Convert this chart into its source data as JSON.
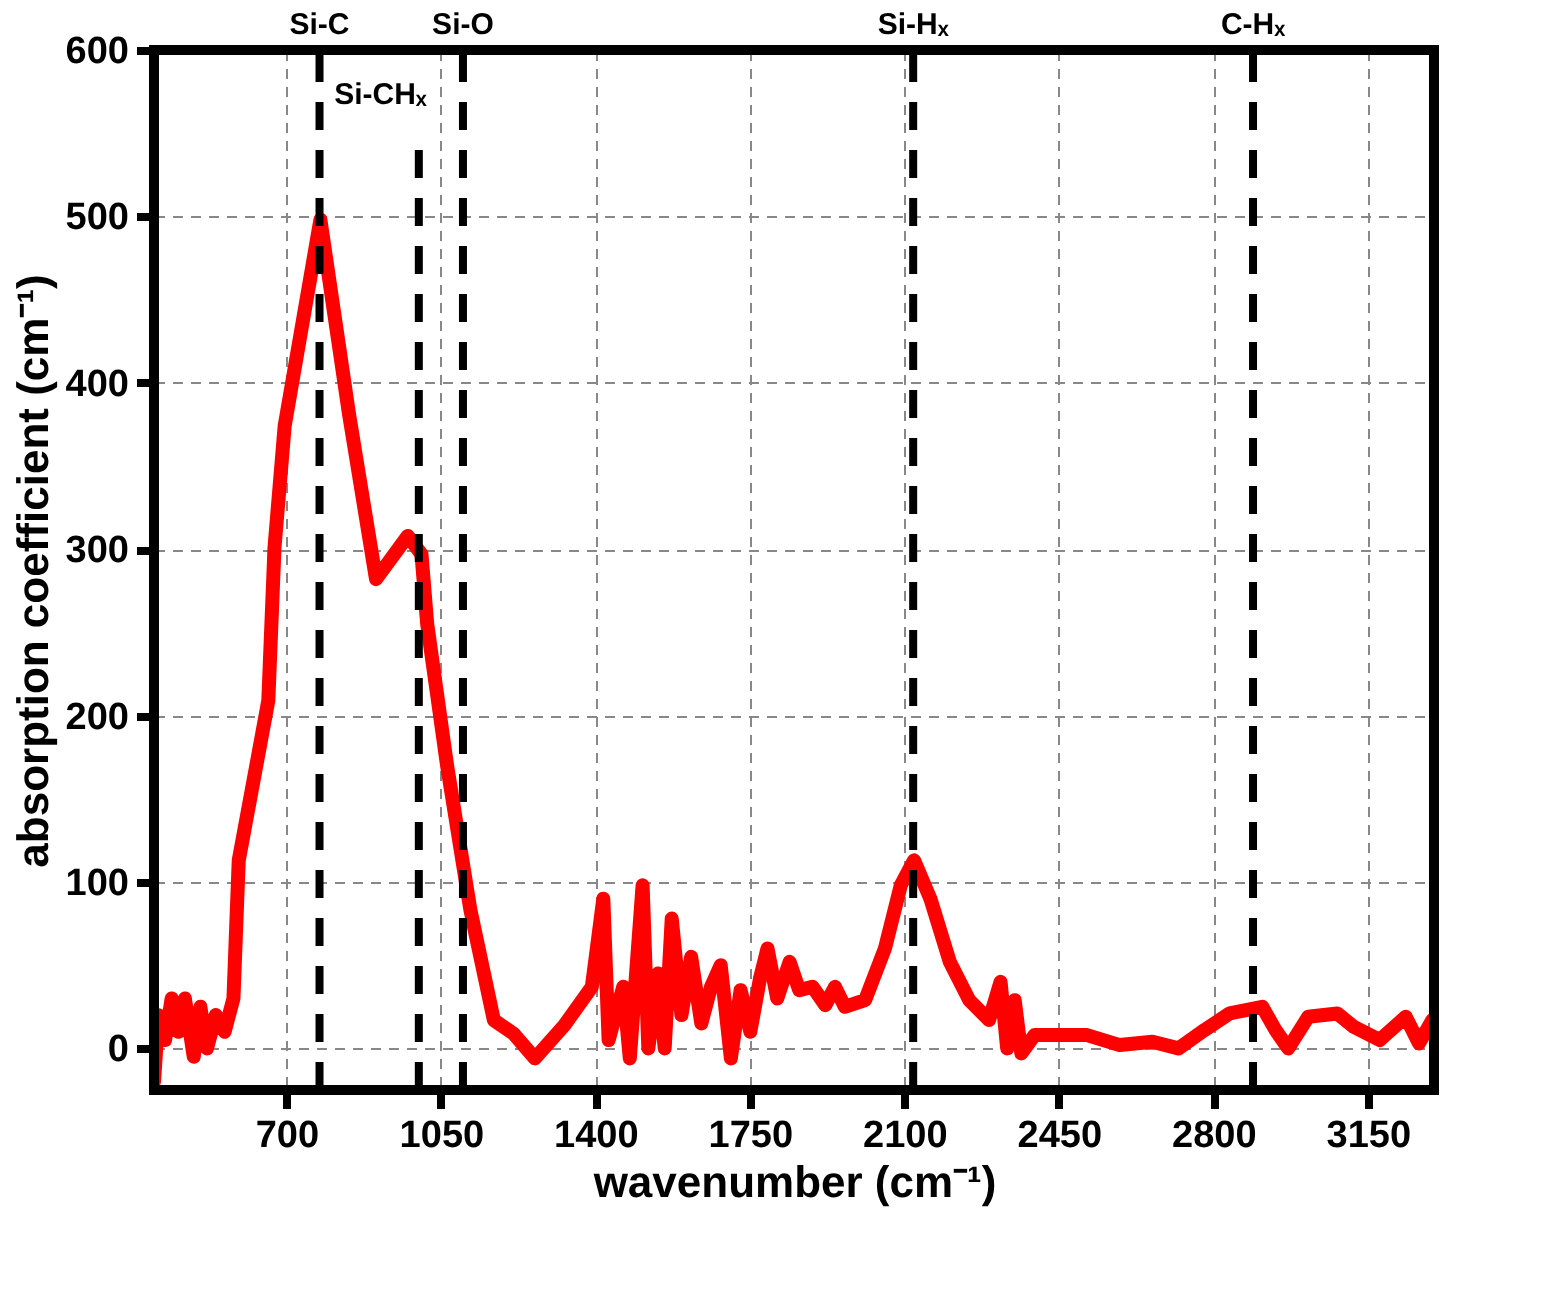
{
  "chart_data": {
    "type": "line",
    "xlabel": "wavenumber (cm⁻¹)",
    "ylabel": "absorption coefficient (cm⁻¹)",
    "xlim": [
      400,
      3300
    ],
    "xticks": [
      700,
      1050,
      1400,
      1750,
      2100,
      2450,
      2800,
      3150
    ],
    "ylim": [
      -25,
      600
    ],
    "yticks": [
      0,
      100,
      200,
      300,
      400,
      500,
      600
    ],
    "grid": true,
    "line_style": "solid",
    "series": [
      {
        "color": "#ff0000",
        "x": [
          400,
          410,
          425,
          440,
          455,
          470,
          490,
          505,
          520,
          540,
          560,
          580,
          592,
          659,
          673,
          696,
          777,
          842,
          903,
          975,
          1006,
          1019,
          1064,
          1117,
          1170,
          1214,
          1263,
          1330,
          1392,
          1418,
          1430,
          1463,
          1478,
          1507,
          1520,
          1542,
          1557,
          1573,
          1595,
          1617,
          1640,
          1662,
          1684,
          1707,
          1729,
          1751,
          1773,
          1790,
          1812,
          1840,
          1862,
          1892,
          1921,
          1943,
          1965,
          2011,
          2056,
          2092,
          2122,
          2159,
          2203,
          2247,
          2292,
          2318,
          2333,
          2350,
          2365,
          2395,
          2514,
          2588,
          2662,
          2721,
          2780,
          2837,
          2911,
          2941,
          2970,
          3015,
          3081,
          3118,
          3177,
          3236,
          3266,
          3296
        ],
        "values": [
          -20,
          20,
          5,
          30,
          10,
          30,
          -5,
          25,
          0,
          20,
          10,
          30,
          113,
          209,
          301,
          374,
          498,
          381,
          282,
          308,
          297,
          255,
          170,
          83,
          17,
          9,
          -6,
          14,
          37,
          90,
          5,
          37,
          -6,
          98,
          0,
          45,
          0,
          78,
          20,
          55,
          15,
          37,
          50,
          -6,
          35,
          10,
          42,
          60,
          30,
          52,
          35,
          37,
          26,
          37,
          25,
          29,
          60,
          98,
          113,
          90,
          52,
          29,
          17,
          40,
          0,
          29,
          -3,
          8,
          8,
          2,
          4,
          0,
          11,
          21,
          25,
          11,
          0,
          19,
          21,
          13,
          5,
          19,
          3,
          17
        ]
      }
    ],
    "ref_lines": [
      {
        "axis": "x",
        "value": 775,
        "label": "Si-C",
        "color": "#000000",
        "line_style": "dashed"
      },
      {
        "axis": "x",
        "value": 1000,
        "label": "Si-CHₓ",
        "color": "#000000",
        "line_style": "dashed"
      },
      {
        "axis": "x",
        "value": 1100,
        "label": "Si-O",
        "color": "#000000",
        "line_style": "dashed"
      },
      {
        "axis": "x",
        "value": 2120,
        "label": "Si-Hₓ",
        "color": "#000000",
        "line_style": "dashed"
      },
      {
        "axis": "x",
        "value": 2890,
        "label": "C-Hₓ",
        "color": "#000000",
        "line_style": "dashed"
      }
    ]
  }
}
